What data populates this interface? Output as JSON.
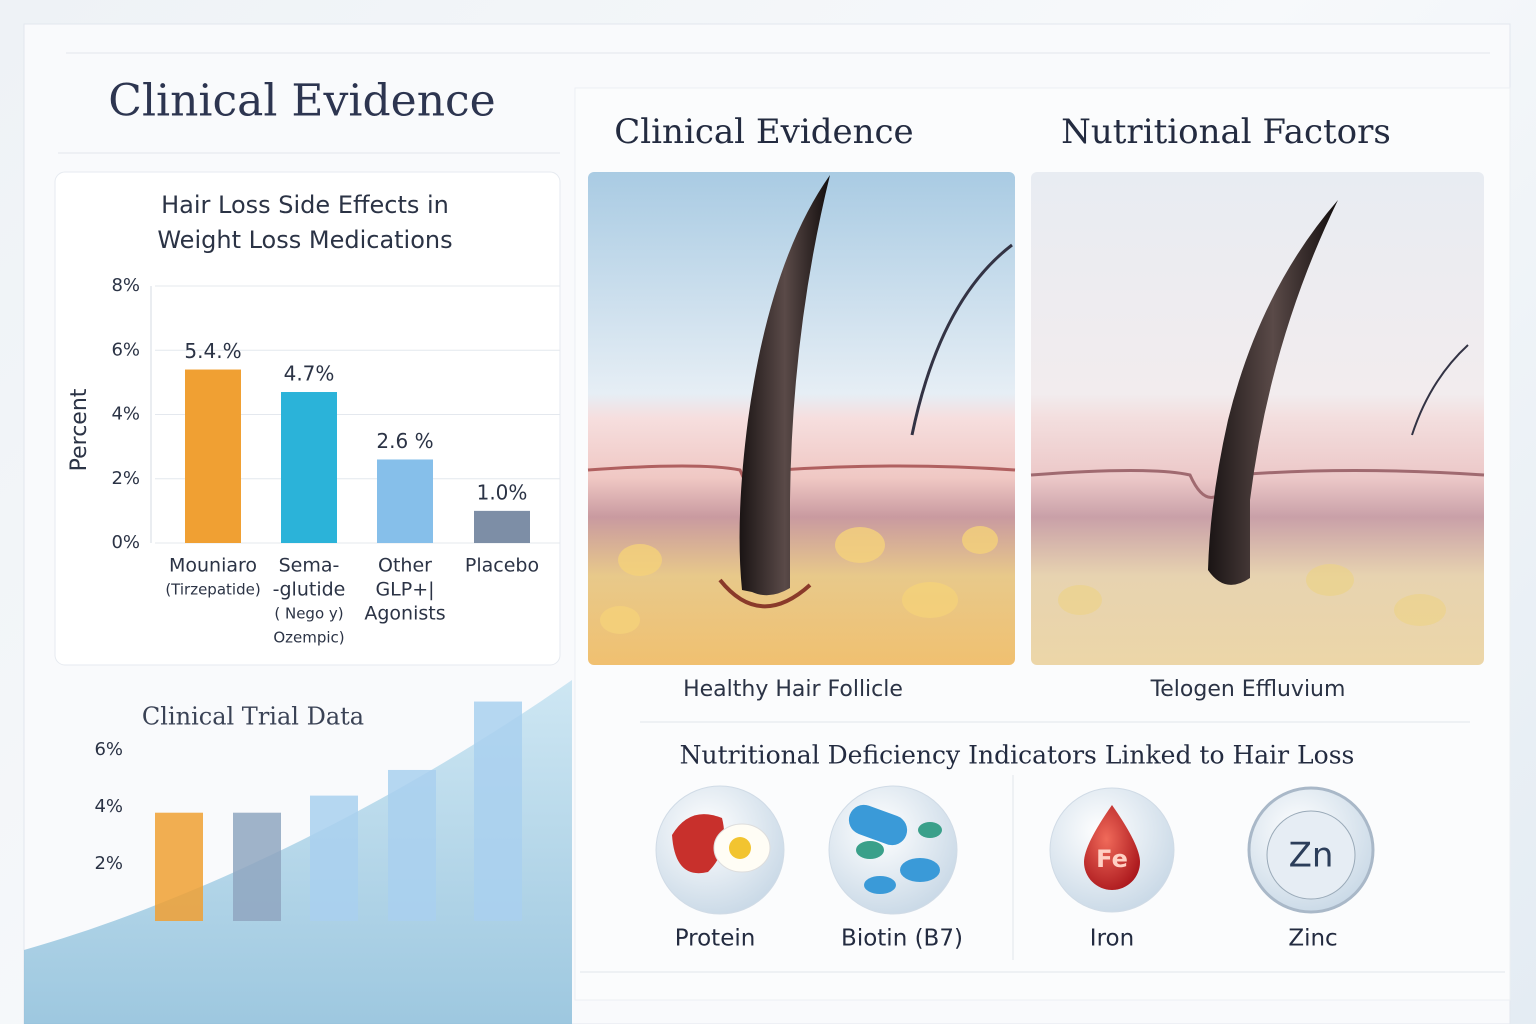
{
  "header": {
    "title": "Clinical Evidence"
  },
  "chart_data": [
    {
      "type": "bar",
      "title": "Hair Loss Side Effects in Weight Loss Medications",
      "y_label": "Percent",
      "categories": [
        [
          "Mouniaro",
          "(Tirzepatide)"
        ],
        [
          "Sema-",
          "-glutide",
          "( Nego y)",
          "Ozempic)"
        ],
        [
          "Other",
          "GLP+|",
          "Agonists"
        ],
        [
          "Placebo"
        ]
      ],
      "values": [
        5.4,
        4.7,
        2.6,
        1.0
      ],
      "value_labels": [
        "5.4.%",
        "4.7%",
        "2.6 %",
        "1.0%"
      ],
      "colors": [
        "#f0a033",
        "#2bb3d9",
        "#86bfea",
        "#7d8ea6"
      ],
      "ylim": [
        0,
        8
      ],
      "yticks": [
        {
          "value": 0,
          "label": "0%"
        },
        {
          "value": 2,
          "label": "2%"
        },
        {
          "value": 4,
          "label": "4%"
        },
        {
          "value": 6,
          "label": "6%"
        },
        {
          "value": 8,
          "label": "8%"
        }
      ],
      "grid": true
    },
    {
      "type": "bar",
      "title": "Clinical Trial Data",
      "categories": [
        null,
        null,
        null,
        null,
        null
      ],
      "values": [
        3.8,
        3.8,
        4.4,
        5.3,
        7.7
      ],
      "colors": [
        "#f0a033",
        "#8fa6bf",
        "#a9d0ee",
        "#a9d0ee",
        "#a9d0ee"
      ],
      "ylim": [
        0,
        8
      ],
      "yticks": [
        {
          "value": 2,
          "label": "2%"
        },
        {
          "value": 4,
          "label": "4%"
        },
        {
          "value": 6,
          "label": "6%"
        }
      ],
      "grid": false
    }
  ],
  "panels": {
    "headings": [
      "Clinical Evidence",
      "Nutritional Factors"
    ],
    "captions": [
      "Healthy Hair Follicle",
      "Telogen Effluvium"
    ]
  },
  "nutrients": {
    "title": "Nutritional Deficiency Indicators Linked to Hair Loss",
    "items": [
      {
        "label": "Protein"
      },
      {
        "label": "Biotin (B7)"
      },
      {
        "label": "Iron",
        "symbol": "Fe"
      },
      {
        "label": "Zinc",
        "symbol": "Zn"
      }
    ]
  }
}
